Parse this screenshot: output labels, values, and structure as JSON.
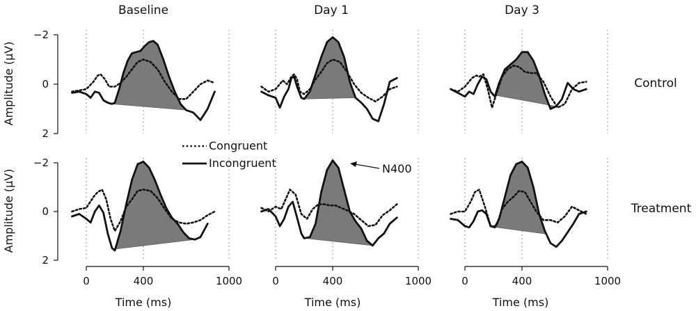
{
  "chart_data": {
    "type": "line",
    "title": "",
    "columns": [
      "Baseline",
      "Day 1",
      "Day 3"
    ],
    "rows": [
      "Control",
      "Treatment"
    ],
    "xlabel": "Time (ms)",
    "ylabel": "Amplitude (μV)",
    "xlim": [
      -100,
      1000
    ],
    "ylim": [
      -2.2,
      2
    ],
    "y_inverted": true,
    "xticks": [
      {
        "v": 0,
        "label": "0"
      },
      {
        "v": 400,
        "label": "400"
      },
      {
        "v": 1000,
        "label": "1000"
      }
    ],
    "yticks": [
      {
        "v": -2,
        "label": "−2"
      },
      {
        "v": 0,
        "label": "0"
      },
      {
        "v": 2,
        "label": "2"
      }
    ],
    "gridlines_x": [
      0,
      400,
      1000
    ],
    "legend": {
      "position": "center",
      "entries": [
        "Congruent",
        "Incongruent"
      ]
    },
    "annotation": {
      "text": "N400",
      "panel": "treatment-day1"
    },
    "panels": [
      {
        "id": "control-baseline",
        "row": "Control",
        "col": "Baseline",
        "series": [
          {
            "name": "Congruent",
            "x": [
              -100,
              -50,
              0,
              50,
              80,
              100,
              130,
              160,
              200,
              240,
              280,
              320,
              360,
              400,
              450,
              500,
              550,
              600,
              650,
              700,
              750,
              800,
              850,
              900
            ],
            "y": [
              0.3,
              0.25,
              0.2,
              -0.1,
              -0.35,
              -0.4,
              -0.2,
              0.1,
              0.1,
              -0.05,
              -0.3,
              -0.6,
              -0.9,
              -1.0,
              -0.9,
              -0.6,
              -0.1,
              0.3,
              0.6,
              0.6,
              0.3,
              0.0,
              -0.15,
              -0.05
            ]
          },
          {
            "name": "Incongruent",
            "x": [
              -100,
              -50,
              0,
              30,
              60,
              90,
              120,
              150,
              180,
              200,
              230,
              260,
              290,
              320,
              350,
              380,
              410,
              440,
              470,
              500,
              540,
              580,
              620,
              660,
              700,
              750,
              800,
              850,
              900
            ],
            "y": [
              0.35,
              0.3,
              0.4,
              0.55,
              0.3,
              0.35,
              0.65,
              0.75,
              0.8,
              0.75,
              0.2,
              -0.45,
              -0.95,
              -1.25,
              -1.3,
              -1.35,
              -1.55,
              -1.7,
              -1.75,
              -1.6,
              -1.0,
              -0.3,
              0.3,
              0.8,
              1.05,
              1.15,
              1.45,
              1.0,
              0.3
            ]
          }
        ],
        "shaded": {
          "from": 180,
          "to": 700
        }
      },
      {
        "id": "control-day1",
        "row": "Control",
        "col": "Day 1",
        "series": [
          {
            "name": "Congruent",
            "x": [
              -100,
              -50,
              0,
              50,
              80,
              110,
              130,
              150,
              170,
              200,
              240,
              280,
              320,
              360,
              400,
              450,
              500,
              550,
              600,
              650,
              700,
              750,
              800,
              850
            ],
            "y": [
              0.1,
              0.3,
              0.2,
              -0.15,
              0.0,
              -0.3,
              -0.4,
              -0.2,
              0.3,
              0.4,
              0.2,
              -0.2,
              -0.5,
              -0.85,
              -1.0,
              -0.9,
              -0.5,
              0.0,
              0.35,
              0.55,
              0.7,
              0.5,
              0.2,
              0.1
            ]
          },
          {
            "name": "Incongruent",
            "x": [
              -100,
              -50,
              0,
              30,
              60,
              90,
              110,
              130,
              150,
              180,
              200,
              240,
              280,
              320,
              360,
              400,
              440,
              480,
              520,
              560,
              600,
              640,
              680,
              720,
              760,
              800,
              850
            ],
            "y": [
              0.3,
              0.45,
              0.55,
              0.95,
              0.5,
              0.2,
              -0.25,
              -0.3,
              0.1,
              0.55,
              0.6,
              0.3,
              -0.4,
              -1.1,
              -1.7,
              -1.9,
              -1.7,
              -1.1,
              -0.1,
              0.55,
              0.75,
              1.0,
              1.4,
              1.5,
              0.8,
              -0.1,
              -0.25
            ]
          }
        ],
        "shaded": {
          "from": 200,
          "to": 560
        }
      },
      {
        "id": "control-day3",
        "row": "Control",
        "col": "Day 3",
        "series": [
          {
            "name": "Congruent",
            "x": [
              -100,
              -50,
              0,
              50,
              80,
              100,
              130,
              160,
              190,
              220,
              260,
              300,
              340,
              380,
              420,
              460,
              500,
              550,
              600,
              650,
              700,
              750,
              800,
              850
            ],
            "y": [
              0.2,
              0.3,
              0.1,
              -0.25,
              -0.35,
              -0.3,
              -0.4,
              0.2,
              0.95,
              0.4,
              -0.3,
              -0.6,
              -0.75,
              -0.7,
              -0.5,
              -0.45,
              -0.45,
              -0.1,
              0.5,
              0.95,
              0.8,
              0.2,
              -0.05,
              -0.1
            ]
          },
          {
            "name": "Incongruent",
            "x": [
              -100,
              -50,
              0,
              30,
              60,
              90,
              120,
              150,
              180,
              210,
              240,
              280,
              320,
              360,
              400,
              440,
              480,
              520,
              560,
              600,
              640,
              680,
              720,
              760,
              800,
              850
            ],
            "y": [
              0.2,
              0.35,
              0.5,
              0.3,
              0.4,
              0.0,
              -0.3,
              -0.2,
              0.3,
              0.5,
              -0.05,
              -0.6,
              -0.8,
              -1.0,
              -1.3,
              -1.3,
              -0.95,
              -0.35,
              0.4,
              1.0,
              0.9,
              0.6,
              -0.05,
              0.2,
              0.3,
              0.2
            ]
          }
        ],
        "shaded": {
          "from": 200,
          "to": 640
        }
      },
      {
        "id": "treatment-baseline",
        "row": "Treatment",
        "col": "Baseline",
        "series": [
          {
            "name": "Congruent",
            "x": [
              -100,
              -50,
              0,
              50,
              80,
              110,
              140,
              170,
              200,
              240,
              280,
              320,
              360,
              400,
              450,
              500,
              550,
              600,
              650,
              700,
              750,
              800,
              850,
              900
            ],
            "y": [
              0.0,
              -0.1,
              -0.15,
              -0.6,
              -0.8,
              -0.9,
              -0.5,
              0.3,
              0.8,
              0.4,
              -0.2,
              -0.5,
              -0.85,
              -0.9,
              -0.85,
              -0.55,
              -0.1,
              0.3,
              0.45,
              0.5,
              0.45,
              0.35,
              0.15,
              0.0
            ]
          },
          {
            "name": "Incongruent",
            "x": [
              -100,
              -50,
              0,
              30,
              60,
              90,
              120,
              150,
              180,
              200,
              240,
              280,
              320,
              360,
              400,
              440,
              480,
              520,
              560,
              600,
              640,
              680,
              720,
              760,
              800,
              850
            ],
            "y": [
              0.2,
              0.1,
              0.3,
              0.45,
              0.0,
              -0.25,
              0.05,
              0.9,
              1.5,
              1.6,
              0.8,
              -0.3,
              -1.3,
              -1.95,
              -2.05,
              -1.8,
              -1.3,
              -0.7,
              -0.15,
              0.25,
              0.5,
              0.85,
              1.1,
              1.15,
              1.05,
              0.5
            ]
          }
        ],
        "shaded": {
          "from": 190,
          "to": 760
        }
      },
      {
        "id": "treatment-day1",
        "row": "Treatment",
        "col": "Day 1",
        "series": [
          {
            "name": "Congruent",
            "x": [
              -100,
              -50,
              0,
              40,
              70,
              100,
              140,
              180,
              220,
              260,
              300,
              340,
              380,
              420,
              460,
              500,
              550,
              600,
              650,
              700,
              750,
              800,
              850
            ],
            "y": [
              -0.15,
              0.0,
              -0.2,
              -0.1,
              -0.5,
              -0.9,
              -0.7,
              0.1,
              0.3,
              -0.1,
              -0.3,
              -0.3,
              -0.25,
              -0.25,
              -0.15,
              -0.05,
              0.1,
              0.35,
              0.6,
              0.55,
              0.15,
              -0.05,
              -0.3
            ]
          },
          {
            "name": "Incongruent",
            "x": [
              -100,
              -50,
              0,
              30,
              60,
              90,
              120,
              150,
              180,
              200,
              240,
              280,
              320,
              360,
              400,
              440,
              480,
              520,
              560,
              600,
              640,
              680,
              720,
              760,
              800,
              850
            ],
            "y": [
              0.0,
              -0.1,
              0.2,
              0.6,
              0.3,
              -0.2,
              -0.4,
              0.25,
              0.9,
              1.1,
              1.05,
              0.5,
              -0.8,
              -1.7,
              -2.1,
              -1.8,
              -0.9,
              0.0,
              0.4,
              0.7,
              1.2,
              1.4,
              1.1,
              0.9,
              0.5,
              0.25
            ]
          }
        ],
        "shaded": {
          "from": 200,
          "to": 680
        }
      },
      {
        "id": "treatment-day3",
        "row": "Treatment",
        "col": "Day 3",
        "series": [
          {
            "name": "Congruent",
            "x": [
              -100,
              -50,
              0,
              40,
              70,
              100,
              140,
              180,
              220,
              260,
              300,
              340,
              380,
              420,
              460,
              500,
              550,
              600,
              650,
              700,
              750,
              800,
              850
            ],
            "y": [
              0.1,
              0.0,
              0.0,
              -0.4,
              -0.8,
              -0.9,
              -0.2,
              0.6,
              0.6,
              -0.1,
              -0.4,
              -0.6,
              -0.85,
              -0.8,
              -0.4,
              0.0,
              0.35,
              0.35,
              0.45,
              0.2,
              -0.2,
              -0.05,
              0.1
            ]
          },
          {
            "name": "Incongruent",
            "x": [
              -100,
              -50,
              0,
              30,
              60,
              90,
              120,
              150,
              180,
              210,
              240,
              280,
              320,
              360,
              400,
              440,
              480,
              520,
              560,
              600,
              640,
              680,
              720,
              760,
              800,
              850
            ],
            "y": [
              0.3,
              0.35,
              0.6,
              0.65,
              0.4,
              0.0,
              -0.05,
              0.1,
              0.6,
              0.65,
              0.3,
              -0.6,
              -1.5,
              -1.95,
              -2.05,
              -1.8,
              -1.0,
              0.1,
              0.8,
              1.3,
              1.45,
              1.2,
              0.85,
              0.5,
              0.1,
              0.0
            ]
          }
        ],
        "shaded": {
          "from": 200,
          "to": 570
        }
      }
    ]
  }
}
